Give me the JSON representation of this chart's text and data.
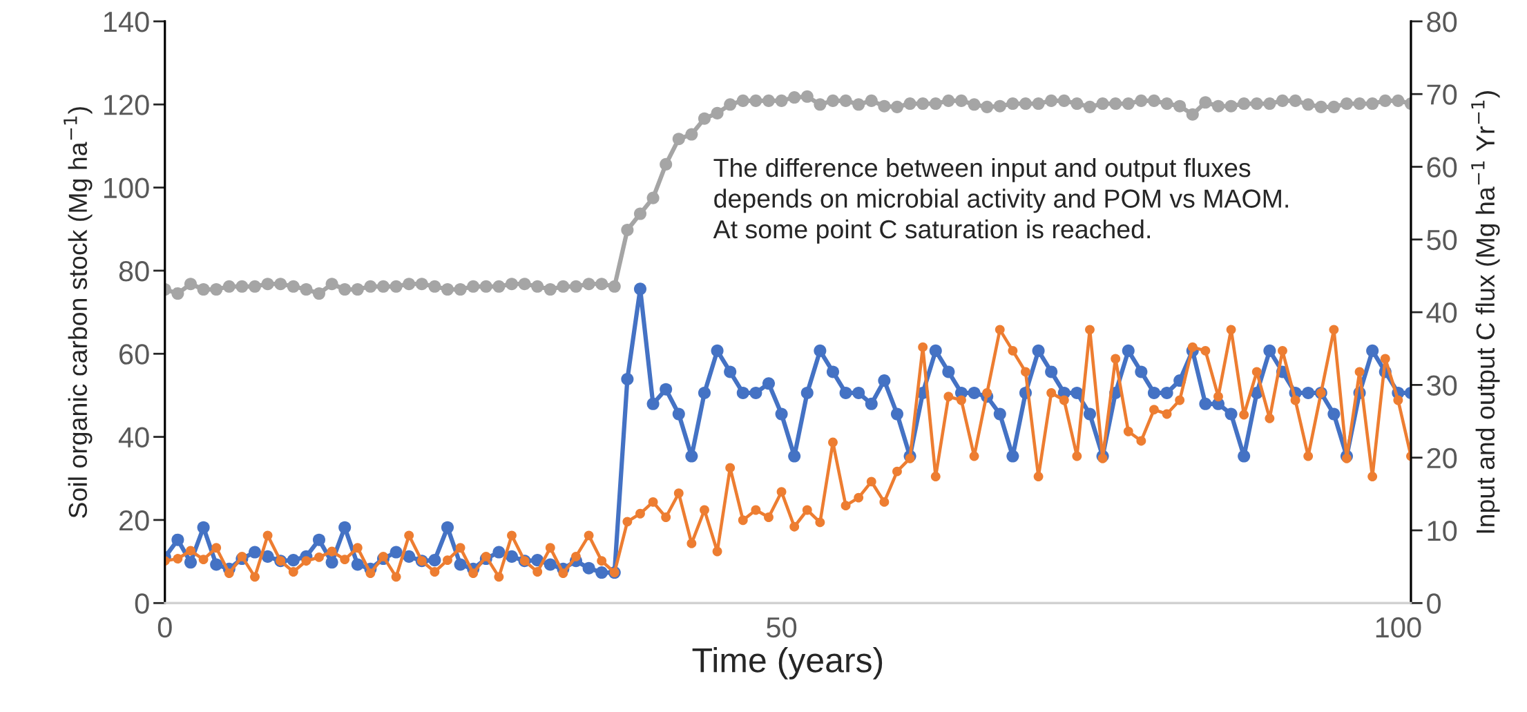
{
  "chart_data": {
    "type": "line",
    "xlabel": "Time (years)",
    "ylabel": "Soil organic carbon stock (Mg ha$^{−1}$)",
    "y2label": "Input and output C flux (Mg ha$^{−1}$ Yr$^{−1}$)",
    "categories": [
      "0",
      null,
      null,
      null,
      null,
      null,
      null,
      null,
      null,
      null,
      null,
      null,
      null,
      null,
      null,
      null,
      null,
      null,
      null,
      null,
      null,
      null,
      null,
      null,
      null,
      null,
      null,
      null,
      null,
      null,
      null,
      null,
      null,
      null,
      null,
      null,
      null,
      null,
      null,
      null,
      null,
      null,
      null,
      null,
      null,
      null,
      null,
      null,
      "50",
      null,
      null,
      null,
      null,
      null,
      null,
      null,
      null,
      null,
      null,
      null,
      null,
      null,
      null,
      null,
      null,
      null,
      null,
      null,
      null,
      null,
      null,
      null,
      null,
      null,
      null,
      null,
      null,
      null,
      null,
      null,
      null,
      null,
      null,
      null,
      null,
      null,
      null,
      null,
      null,
      null,
      null,
      null,
      null,
      null,
      null,
      null,
      "100",
      null
    ],
    "series": [
      {
        "color": "#a5a5a5",
        "values": [
          75.5,
          74.5,
          76.8,
          75.5,
          75.5,
          76.2,
          76.2,
          76.2,
          76.8,
          76.8,
          76.2,
          75.5,
          74.5,
          76.8,
          75.5,
          75.5,
          76.2,
          76.2,
          76.2,
          76.8,
          76.8,
          76.2,
          75.5,
          75.5,
          76.2,
          76.2,
          76.2,
          76.8,
          76.8,
          76.2,
          75.5,
          76.2,
          76.2,
          76.8,
          76.8,
          76.2,
          89.8,
          93.7,
          97.5,
          105.6,
          111.7,
          112.8,
          116.6,
          117.9,
          120.0,
          120.9,
          120.9,
          120.9,
          120.9,
          121.7,
          121.9,
          120.0,
          120.9,
          120.9,
          120.0,
          120.9,
          119.6,
          119.4,
          120.2,
          120.2,
          120.2,
          120.9,
          120.9,
          120.0,
          119.4,
          119.6,
          120.2,
          120.2,
          120.2,
          120.9,
          120.9,
          120.2,
          119.4,
          120.2,
          120.2,
          120.2,
          120.9,
          120.9,
          120.2,
          119.6,
          117.6,
          120.5,
          119.6,
          119.6,
          120.2,
          120.2,
          120.2,
          120.9,
          120.9,
          120.0,
          119.4,
          119.4,
          120.2,
          120.2,
          120.2,
          120.9,
          120.9,
          120.2
        ]
      },
      {
        "color": "#4472c4",
        "axis": "y2",
        "values": [
          6.3,
          8.7,
          5.6,
          10.4,
          5.3,
          4.7,
          6.1,
          7.0,
          6.4,
          5.8,
          5.9,
          6.4,
          8.7,
          5.6,
          10.4,
          5.3,
          4.7,
          6.1,
          7.0,
          6.4,
          5.8,
          5.9,
          10.4,
          5.3,
          4.7,
          6.1,
          7.0,
          6.4,
          5.8,
          5.9,
          5.3,
          4.7,
          5.8,
          4.8,
          4.2,
          4.2,
          30.8,
          43.2,
          27.4,
          29.4,
          26.0,
          20.2,
          28.9,
          34.7,
          31.8,
          28.9,
          28.9,
          30.2,
          26.0,
          20.2,
          28.9,
          34.7,
          31.8,
          28.9,
          28.9,
          27.4,
          30.6,
          26.0,
          20.2,
          28.9,
          34.7,
          31.8,
          28.9,
          28.9,
          28.4,
          26.0,
          20.2,
          28.9,
          34.7,
          31.8,
          28.9,
          28.9,
          26.0,
          20.2,
          28.9,
          34.7,
          31.8,
          28.9,
          28.9,
          30.6,
          34.7,
          27.4,
          27.4,
          26.0,
          20.2,
          28.9,
          34.7,
          31.8,
          28.9,
          28.9,
          28.9,
          26.0,
          20.2,
          28.9,
          34.7,
          31.8,
          28.9,
          28.9
        ]
      },
      {
        "color": "#ed7d31",
        "axis": "y2",
        "values": [
          5.8,
          6.1,
          7.2,
          6.0,
          7.6,
          4.1,
          6.4,
          3.6,
          9.3,
          5.8,
          4.3,
          5.8,
          6.3,
          7.1,
          6.0,
          7.6,
          4.1,
          6.4,
          3.6,
          9.3,
          5.8,
          4.3,
          5.9,
          7.6,
          4.1,
          6.4,
          3.6,
          9.3,
          5.8,
          4.3,
          7.6,
          4.1,
          6.4,
          9.3,
          5.8,
          4.2,
          11.2,
          12.3,
          13.9,
          11.8,
          15.1,
          8.2,
          12.8,
          7.1,
          18.6,
          11.4,
          12.8,
          11.8,
          15.3,
          10.5,
          12.8,
          11.1,
          22.1,
          13.4,
          14.5,
          16.7,
          13.9,
          18.1,
          19.9,
          35.2,
          17.4,
          28.4,
          27.9,
          20.2,
          28.9,
          37.6,
          34.7,
          31.8,
          17.4,
          28.9,
          27.9,
          20.2,
          37.6,
          19.9,
          33.6,
          23.6,
          22.3,
          26.6,
          26.0,
          27.9,
          35.2,
          34.7,
          28.4,
          37.6,
          25.9,
          31.8,
          25.4,
          34.7,
          27.9,
          20.2,
          28.9,
          37.6,
          19.9,
          31.8,
          17.4,
          33.6,
          27.9,
          20.2
        ]
      }
    ],
    "ylim": [
      0,
      140
    ],
    "yticks": [
      0,
      20,
      40,
      60,
      80,
      100,
      120,
      140
    ],
    "y2lim": [
      0,
      80
    ],
    "y2ticks": [
      0,
      10,
      20,
      30,
      40,
      50,
      60,
      70,
      80
    ],
    "marker": "circle",
    "line_style": "solid",
    "annotations": [
      "The difference between input and output fluxes\ndepends on microbial activity and POM vs MAOM.\nAt some point C saturation is reached."
    ]
  }
}
